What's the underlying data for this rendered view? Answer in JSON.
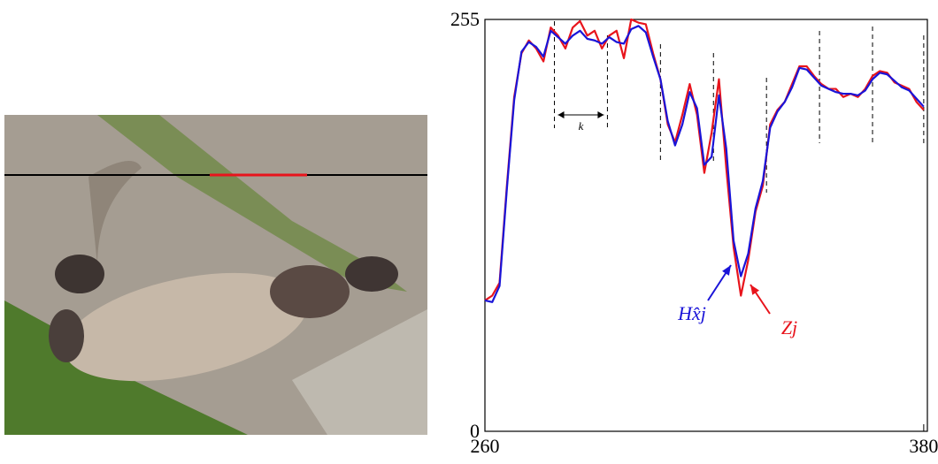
{
  "chart_data": {
    "type": "line",
    "x": [
      260,
      262,
      264,
      266,
      268,
      270,
      272,
      274,
      276,
      278,
      280,
      282,
      284,
      286,
      288,
      290,
      292,
      294,
      296,
      298,
      300,
      302,
      304,
      306,
      308,
      310,
      312,
      314,
      316,
      318,
      320,
      322,
      324,
      326,
      328,
      330,
      332,
      334,
      336,
      338,
      340,
      342,
      344,
      346,
      348,
      350,
      352,
      354,
      356,
      358,
      360,
      362,
      364,
      366,
      368,
      370,
      372,
      374,
      376,
      378,
      380
    ],
    "series": [
      {
        "name": "Zj",
        "color": "#e8141c",
        "values": [
          81,
          84,
          92,
          152,
          207,
          234,
          242,
          237,
          229,
          250,
          245,
          237,
          250,
          254,
          245,
          248,
          237,
          245,
          248,
          231,
          255,
          253,
          252,
          234,
          218,
          190,
          179,
          196,
          215,
          196,
          160,
          185,
          218,
          163,
          114,
          84,
          106,
          136,
          152,
          190,
          199,
          204,
          215,
          226,
          226,
          220,
          215,
          212,
          212,
          207,
          209,
          207,
          212,
          220,
          223,
          222,
          216,
          214,
          212,
          204,
          199
        ]
      },
      {
        "name": "Hx̂j",
        "color": "#1a14d8",
        "values": [
          81,
          80,
          90,
          150,
          205,
          235,
          241,
          238,
          232,
          248,
          244,
          240,
          245,
          248,
          243,
          242,
          240,
          244,
          241,
          240,
          249,
          251,
          247,
          232,
          218,
          192,
          177,
          190,
          210,
          200,
          165,
          170,
          208,
          175,
          118,
          96,
          110,
          138,
          155,
          188,
          198,
          204,
          213,
          225,
          224,
          219,
          214,
          212,
          210,
          209,
          209,
          208,
          211,
          218,
          222,
          221,
          217,
          213,
          211,
          206,
          201
        ]
      }
    ],
    "xlim": [
      260,
      381
    ],
    "ylim": [
      0,
      255
    ],
    "xticks": [
      260,
      380
    ],
    "yticks": [
      0,
      255
    ],
    "block_boundaries": [
      279,
      293.5,
      308,
      322.5,
      337,
      351.5,
      366,
      380
    ],
    "block_label": "k"
  }
}
